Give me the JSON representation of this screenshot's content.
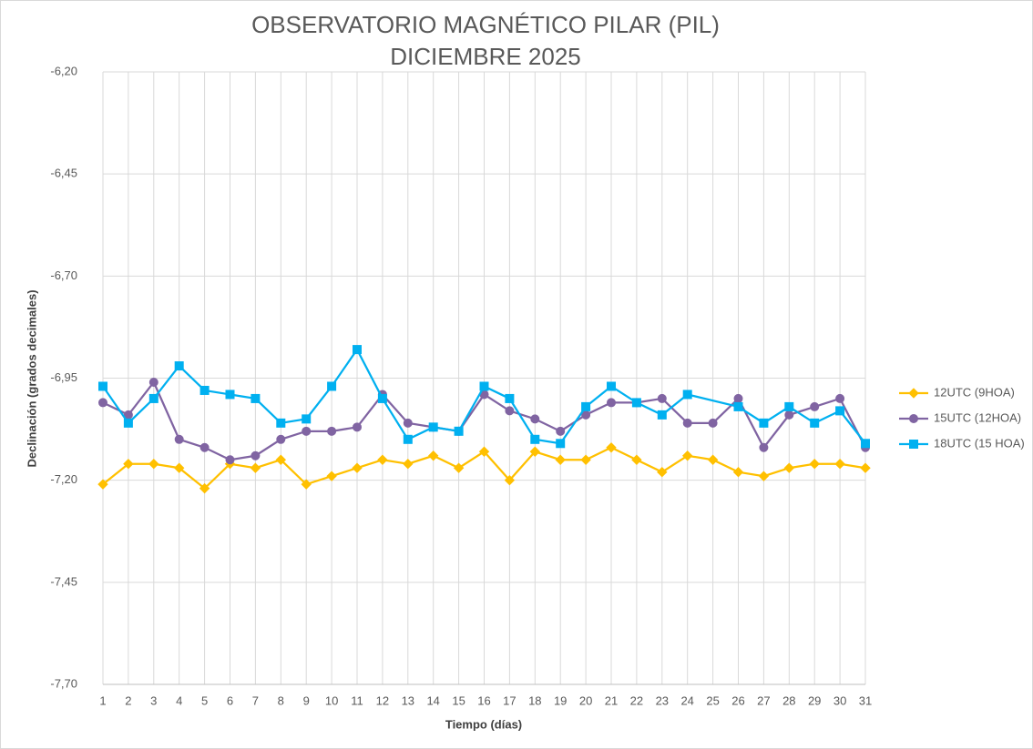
{
  "chart_data": {
    "type": "line",
    "title": "OBSERVATORIO MAGNÉTICO PILAR (PIL)",
    "subtitle": "DICIEMBRE 2025",
    "x_label": "Tiempo (días)",
    "y_label": "Declinación (grados decimales)",
    "categories": [
      "1",
      "2",
      "3",
      "4",
      "5",
      "6",
      "7",
      "8",
      "9",
      "10",
      "11",
      "12",
      "13",
      "14",
      "15",
      "16",
      "17",
      "18",
      "19",
      "20",
      "21",
      "22",
      "23",
      "24",
      "25",
      "26",
      "27",
      "28",
      "29",
      "30",
      "31"
    ],
    "ylim": [
      -7.7,
      -6.2
    ],
    "yticks": [
      {
        "value": -7.7,
        "label": "-7,70"
      },
      {
        "value": -7.45,
        "label": "-7,45"
      },
      {
        "value": -7.2,
        "label": "-7,20"
      },
      {
        "value": -6.95,
        "label": "-6,95"
      },
      {
        "value": -6.7,
        "label": "-6,70"
      },
      {
        "value": -6.45,
        "label": "-6,45"
      },
      {
        "value": -6.2,
        "label": "-6,20"
      }
    ],
    "grid": true,
    "span_gaps": true,
    "legend": "right",
    "series": [
      {
        "name": "12UTC (9HOA)",
        "color": "#FFC000",
        "marker": "diamond",
        "values": [
          -7.21,
          -7.16,
          -7.16,
          -7.17,
          -7.22,
          -7.16,
          -7.17,
          -7.15,
          -7.21,
          -7.19,
          -7.17,
          -7.15,
          -7.16,
          -7.14,
          -7.17,
          -7.13,
          -7.2,
          -7.13,
          -7.15,
          -7.15,
          -7.12,
          -7.15,
          -7.18,
          -7.14,
          -7.15,
          -7.18,
          -7.19,
          -7.17,
          -7.16,
          -7.16,
          -7.17
        ]
      },
      {
        "name": "15UTC (12HOA)",
        "color": "#8064A2",
        "marker": "circle",
        "values": [
          -7.01,
          -7.04,
          -6.96,
          -7.1,
          -7.12,
          -7.15,
          -7.14,
          -7.1,
          -7.08,
          -7.08,
          -7.07,
          -6.99,
          -7.06,
          -7.07,
          -7.08,
          -6.99,
          -7.03,
          -7.05,
          -7.08,
          -7.04,
          -7.01,
          -7.01,
          -7.0,
          -7.06,
          -7.06,
          -7.0,
          -7.12,
          -7.04,
          -7.02,
          -7.0,
          -7.12
        ]
      },
      {
        "name": "18UTC (15 HOA)",
        "color": "#00B0F0",
        "marker": "square",
        "values": [
          -6.97,
          -7.06,
          -7.0,
          -6.92,
          -6.98,
          -6.99,
          -7.0,
          -7.06,
          -7.05,
          -6.97,
          -6.88,
          -7.0,
          -7.1,
          -7.07,
          -7.08,
          -6.97,
          -7.0,
          -7.1,
          -7.11,
          -7.02,
          -6.97,
          -7.01,
          -7.04,
          -6.99,
          null,
          -7.02,
          -7.06,
          -7.02,
          -7.06,
          -7.03,
          -7.11
        ]
      }
    ]
  }
}
